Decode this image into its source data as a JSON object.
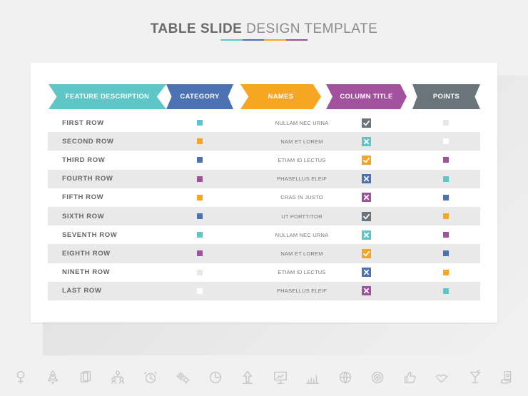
{
  "title": {
    "bold": "TABLE  SLIDE",
    "light": "DESIGN TEMPLATE"
  },
  "colors": {
    "teal": "#5ec6c6",
    "blue": "#4d72b4",
    "orange": "#f6a623",
    "purple": "#a1519e",
    "grey": "#6a747b",
    "none_light": "#e7e7e7",
    "none_white": "#ffffff"
  },
  "headers": [
    {
      "label": "FEATURE DESCRIPTION",
      "color": "#5ec6c6"
    },
    {
      "label": "CATEGORY",
      "color": "#4d72b4"
    },
    {
      "label": "NAMES",
      "color": "#f6a623"
    },
    {
      "label": "COLUMN TITLE",
      "color": "#a1519e"
    },
    {
      "label": "POINTS",
      "color": "#6a747b"
    }
  ],
  "rows": [
    {
      "label": "FIRST ROW",
      "category": "#5ec6c6",
      "name": "NULLAM NEC URNA",
      "mark": "check",
      "markColor": "#6a747b",
      "points": "#e7e7e7"
    },
    {
      "label": "SECOND ROW",
      "category": "#f6a623",
      "name": "NAM ET LOREM",
      "mark": "cross",
      "markColor": "#5ec6c6",
      "points": "#ffffff"
    },
    {
      "label": "THIRD ROW",
      "category": "#4d72b4",
      "name": "ETIAM ID LECTUS",
      "mark": "check",
      "markColor": "#f6a623",
      "points": "#a1519e"
    },
    {
      "label": "FOURTH ROW",
      "category": "#a1519e",
      "name": "PHASELLUS ELEIF",
      "mark": "cross",
      "markColor": "#4d72b4",
      "points": "#5ec6c6"
    },
    {
      "label": "FIFTH ROW",
      "category": "#f6a623",
      "name": "CRAS IN JUSTO",
      "mark": "cross",
      "markColor": "#a1519e",
      "points": "#4d72b4"
    },
    {
      "label": "SIXTH ROW",
      "category": "#4d72b4",
      "name": "UT PORTTITOR",
      "mark": "check",
      "markColor": "#6a747b",
      "points": "#f6a623"
    },
    {
      "label": "SEVENTH ROW",
      "category": "#5ec6c6",
      "name": "NULLAM NEC URNA",
      "mark": "cross",
      "markColor": "#5ec6c6",
      "points": "#a1519e"
    },
    {
      "label": "EIGHTH ROW",
      "category": "#a1519e",
      "name": "NAM ET LOREM",
      "mark": "check",
      "markColor": "#f6a623",
      "points": "#4d72b4"
    },
    {
      "label": "NINETH ROW",
      "category": "#e7e7e7",
      "name": "ETIAM ID LECTUS",
      "mark": "cross",
      "markColor": "#4d72b4",
      "points": "#f6a623"
    },
    {
      "label": "LAST ROW",
      "category": "#ffffff",
      "name": "PHASELLUS ELEIF",
      "mark": "cross",
      "markColor": "#a1519e",
      "points": "#5ec6c6"
    }
  ],
  "icons": [
    "female-symbol-icon",
    "rocket-icon",
    "playing-cards-icon",
    "team-hierarchy-icon",
    "alarm-clock-icon",
    "gears-icon",
    "pie-chart-icon",
    "upload-arrow-icon",
    "presentation-screen-icon",
    "bar-chart-icon",
    "globe-icon",
    "target-icon",
    "thumbs-up-icon",
    "handshake-icon",
    "cocktail-glass-icon",
    "money-hand-icon"
  ]
}
